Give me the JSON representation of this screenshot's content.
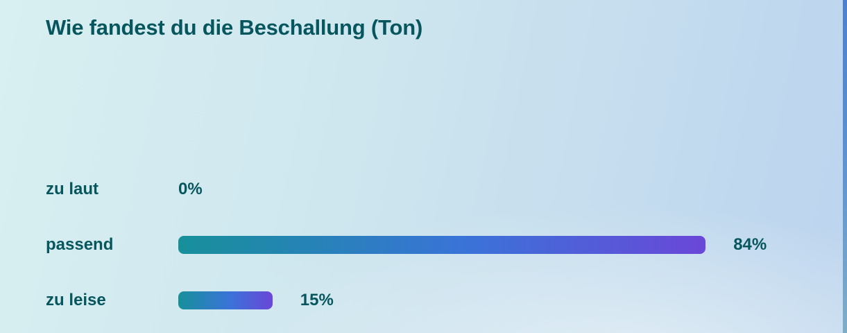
{
  "title": "Wie fandest du die Beschallung (Ton)",
  "colors": {
    "title_text": "#07565e",
    "bar_gradient_start": "#17909a",
    "bar_gradient_mid": "#3a73d8",
    "bar_gradient_end": "#6a47d8",
    "background_cyan": "#d8f0f1",
    "background_blue": "#bdd5ee",
    "right_edge_top": "#4a80cf",
    "right_edge_bottom": "#7fadc8"
  },
  "chart_data": {
    "type": "bar",
    "orientation": "horizontal",
    "title": "Wie fandest du die Beschallung (Ton)",
    "categories": [
      "zu laut",
      "passend",
      "zu leise"
    ],
    "values": [
      0,
      84,
      15
    ],
    "value_labels": [
      "0%",
      "84%",
      "15%"
    ],
    "xlim": [
      0,
      100
    ],
    "grid": false,
    "legend": false,
    "bar_color": "teal-to-purple-gradient"
  }
}
